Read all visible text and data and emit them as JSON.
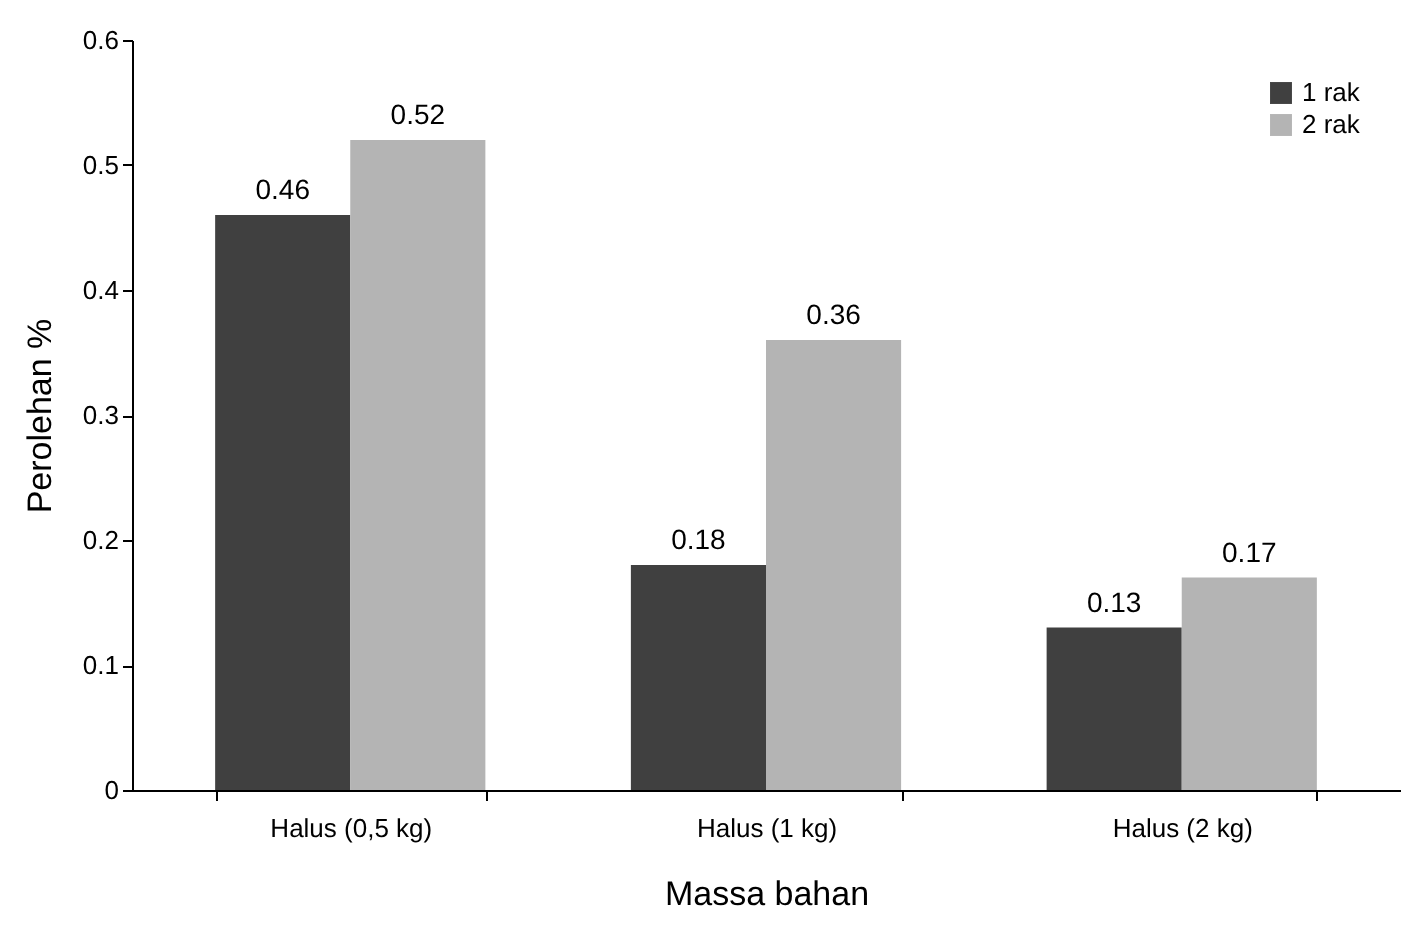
{
  "chart_data": {
    "type": "bar",
    "xlabel": "Massa bahan",
    "ylabel": "Perolehan %",
    "categories": [
      "Halus (0,5 kg)",
      "Halus (1 kg)",
      "Halus (2 kg)"
    ],
    "series": [
      {
        "name": "1 rak",
        "color": "#404040",
        "values": [
          0.46,
          0.18,
          0.13
        ]
      },
      {
        "name": "2 rak",
        "color": "#b4b4b4",
        "values": [
          0.52,
          0.36,
          0.17
        ]
      }
    ],
    "ylim": [
      0,
      0.6
    ],
    "yticks": [
      0,
      0.1,
      0.2,
      0.3,
      0.4,
      0.5,
      0.6
    ],
    "data_labels": true,
    "legend": "top right"
  }
}
